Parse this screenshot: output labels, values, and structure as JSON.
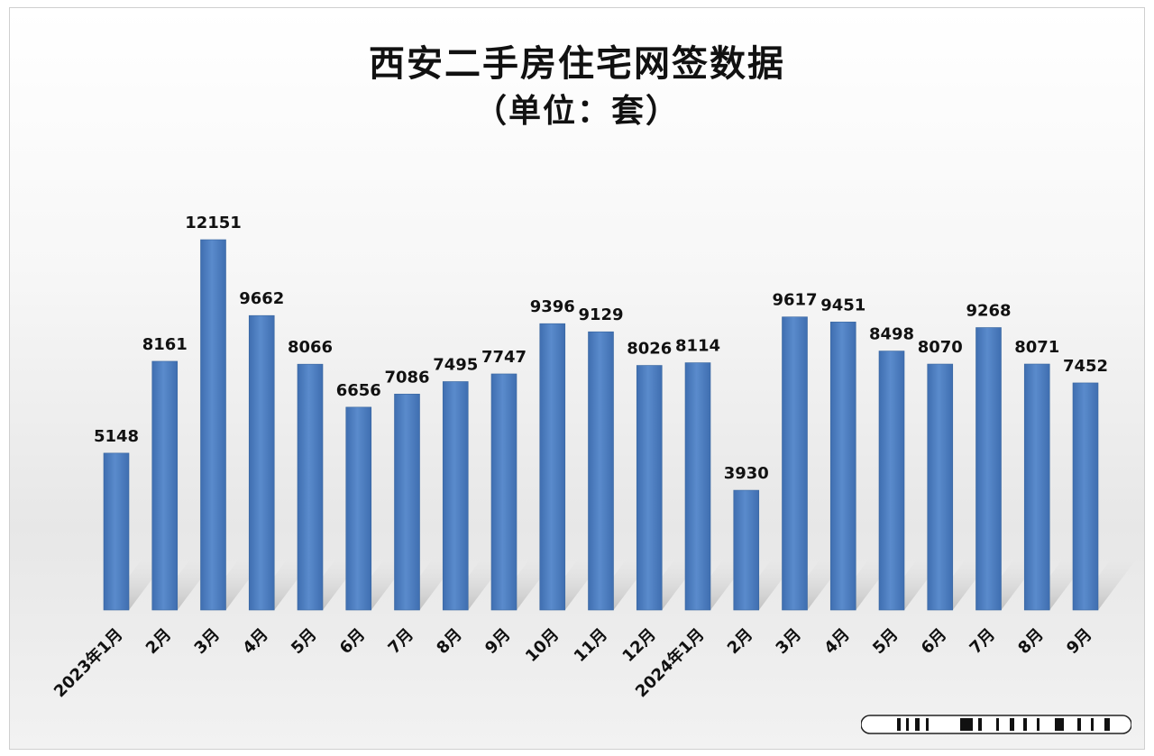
{
  "chart_data": {
    "type": "bar",
    "title": "西安二手房住宅网签数据",
    "subtitle": "（单位：套）",
    "categories": [
      "2023年1月",
      "2月",
      "3月",
      "4月",
      "5月",
      "6月",
      "7月",
      "8月",
      "9月",
      "10月",
      "11月",
      "12月",
      "2024年1月",
      "2月",
      "3月",
      "4月",
      "5月",
      "6月",
      "7月",
      "8月",
      "9月"
    ],
    "values": [
      5148,
      8161,
      12151,
      9662,
      8066,
      6656,
      7086,
      7495,
      7747,
      9396,
      9129,
      8026,
      8114,
      3930,
      9617,
      9451,
      8498,
      8070,
      9268,
      8071,
      7452
    ],
    "value_labels": [
      "5148",
      "8161",
      "12151",
      "9662",
      "8066",
      "6656",
      "7086",
      "7495",
      "7747",
      "9396",
      "9129",
      "8026",
      "8114",
      "3930",
      "9617",
      "9451",
      "8498",
      "8070",
      "9268",
      "8071",
      "7452"
    ],
    "ylim": [
      0,
      12151
    ],
    "grid": false,
    "legend": "none",
    "colors": {
      "bar": "#4a7bbf",
      "bar_edge": "#3a679f",
      "text": "#111111"
    }
  }
}
